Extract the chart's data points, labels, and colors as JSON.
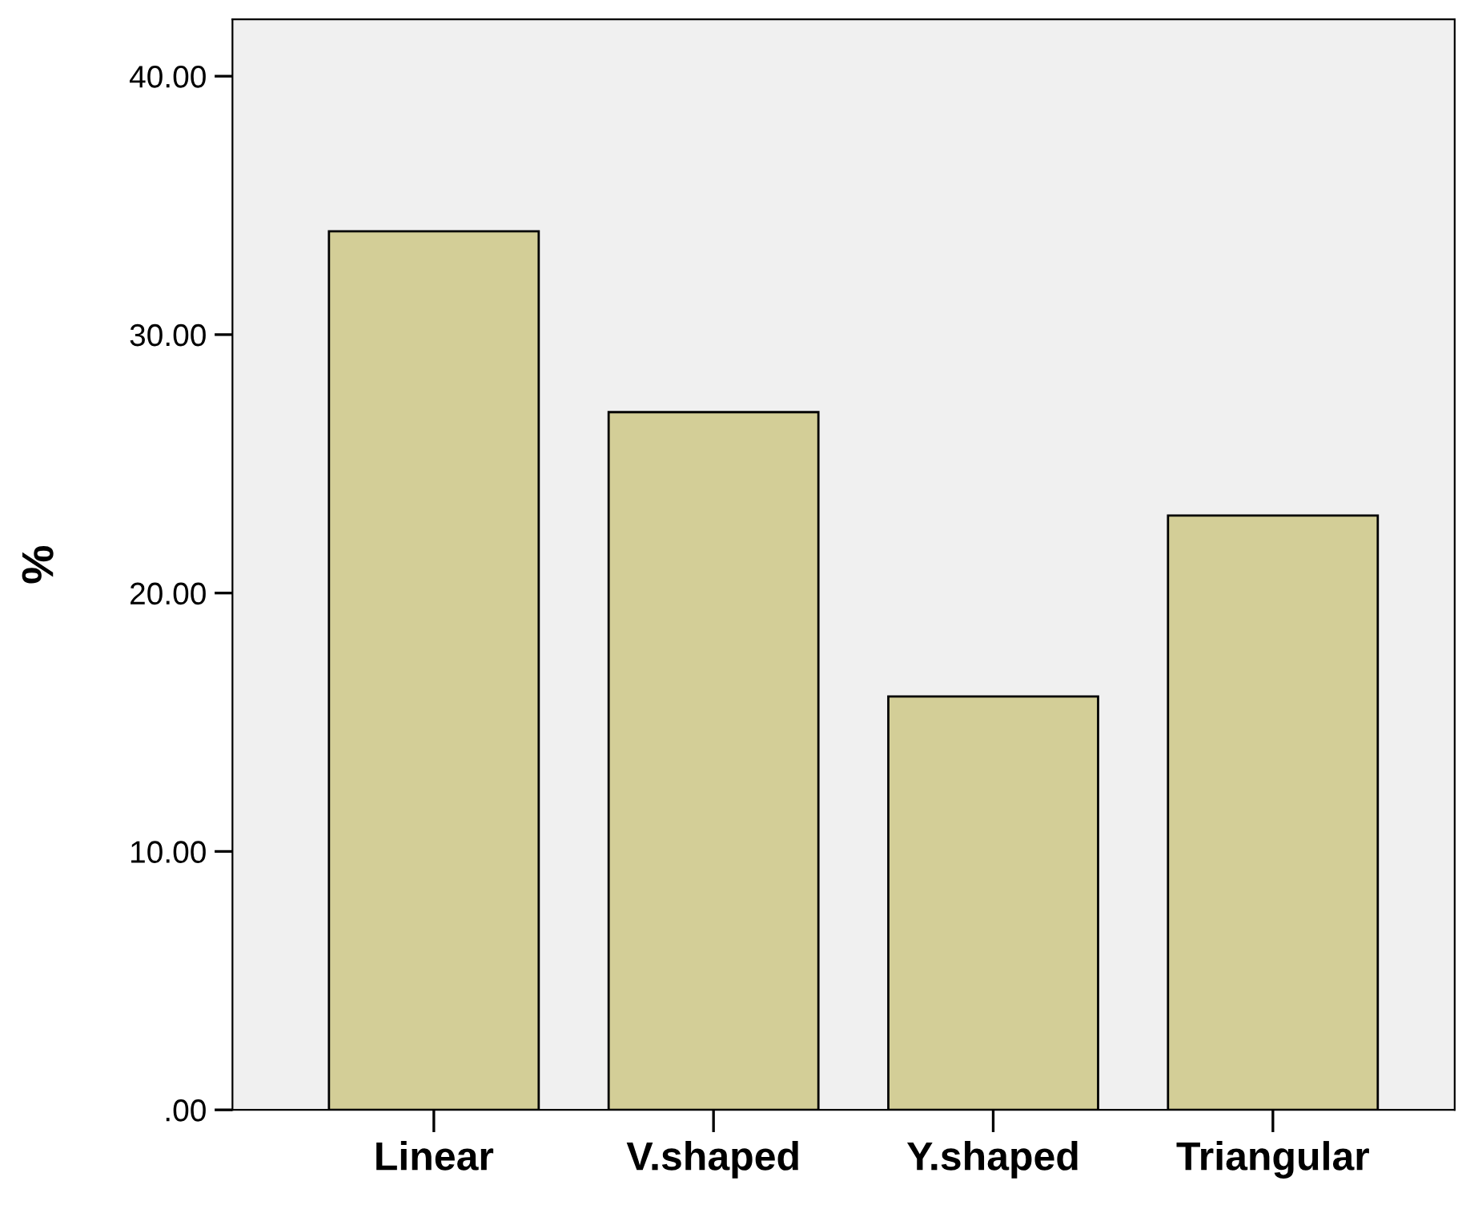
{
  "chart_data": {
    "type": "bar",
    "ylabel": "%",
    "categories": [
      "Linear",
      "V.shaped",
      "Y.shaped",
      "Triangular"
    ],
    "values": [
      34,
      27,
      16,
      23
    ],
    "color": "#d3ce97",
    "ylim": [
      0,
      42.2
    ],
    "yticks": [
      {
        "value": 0,
        "label": ".00"
      },
      {
        "value": 10,
        "label": "10.00"
      },
      {
        "value": 20,
        "label": "20.00"
      },
      {
        "value": 30,
        "label": "30.00"
      },
      {
        "value": 40,
        "label": "40.00"
      }
    ],
    "grid": false,
    "legend": false
  }
}
